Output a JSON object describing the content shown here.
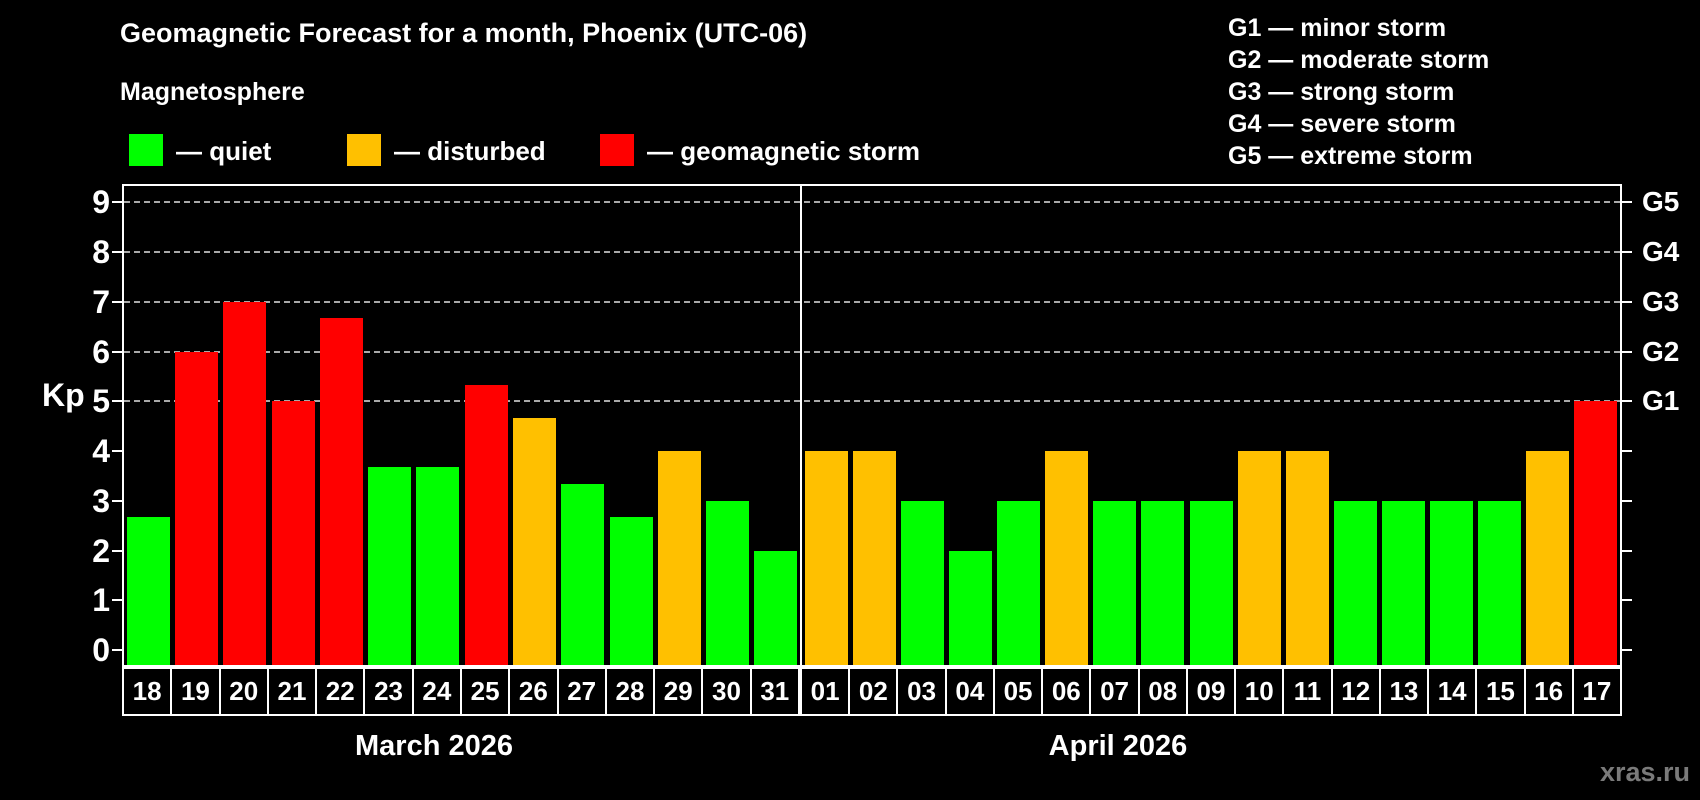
{
  "title": "Geomagnetic Forecast for a month, Phoenix (UTC-06)",
  "subtitle": "Magnetosphere",
  "legend": {
    "items": [
      {
        "name": "quiet",
        "label": "— quiet",
        "color": "#00ff00"
      },
      {
        "name": "disturbed",
        "label": "— disturbed",
        "color": "#ffc000"
      },
      {
        "name": "storm",
        "label": "— geomagnetic storm",
        "color": "#ff0000"
      }
    ]
  },
  "storm_scale": [
    "G1 — minor storm",
    "G2 — moderate storm",
    "G3 — strong storm",
    "G4 — severe storm",
    "G5 — extreme storm"
  ],
  "watermark": "xras.ru",
  "chart_data": {
    "type": "bar",
    "title": "Geomagnetic Forecast for a month, Phoenix (UTC-06)",
    "ylabel": "Kp",
    "ylim": [
      -0.35,
      9.36
    ],
    "yticks": [
      0,
      1,
      2,
      3,
      4,
      5,
      6,
      7,
      8,
      9
    ],
    "gridlines_kp": [
      5,
      6,
      7,
      8,
      9
    ],
    "grid": "dashed horizontal at Kp 5-9 only",
    "right_axis_labels": [
      {
        "label": "G5",
        "kp": 9
      },
      {
        "label": "G4",
        "kp": 8
      },
      {
        "label": "G3",
        "kp": 7
      },
      {
        "label": "G2",
        "kp": 6
      },
      {
        "label": "G1",
        "kp": 5
      }
    ],
    "level_colors": {
      "quiet": "#00ff00",
      "disturbed": "#ffc000",
      "storm": "#ff0000"
    },
    "months": [
      {
        "label": "March 2026",
        "categories": [
          "18",
          "19",
          "20",
          "21",
          "22",
          "23",
          "24",
          "25",
          "26",
          "27",
          "28",
          "29",
          "30",
          "31"
        ],
        "values": [
          2.67,
          6,
          7,
          5,
          6.67,
          3.67,
          3.67,
          5.33,
          4.67,
          3.33,
          2.67,
          4,
          3,
          2
        ],
        "levels": [
          "quiet",
          "storm",
          "storm",
          "storm",
          "storm",
          "quiet",
          "quiet",
          "storm",
          "disturbed",
          "quiet",
          "quiet",
          "disturbed",
          "quiet",
          "quiet"
        ]
      },
      {
        "label": "April 2026",
        "categories": [
          "01",
          "02",
          "03",
          "04",
          "05",
          "06",
          "07",
          "08",
          "09",
          "10",
          "11",
          "12",
          "13",
          "14",
          "15",
          "16",
          "17"
        ],
        "values": [
          4,
          4,
          3,
          2,
          3,
          4,
          3,
          3,
          3,
          4,
          4,
          3,
          3,
          3,
          3,
          4,
          5
        ],
        "levels": [
          "disturbed",
          "disturbed",
          "quiet",
          "quiet",
          "quiet",
          "disturbed",
          "quiet",
          "quiet",
          "quiet",
          "disturbed",
          "disturbed",
          "quiet",
          "quiet",
          "quiet",
          "quiet",
          "disturbed",
          "storm"
        ]
      }
    ]
  }
}
